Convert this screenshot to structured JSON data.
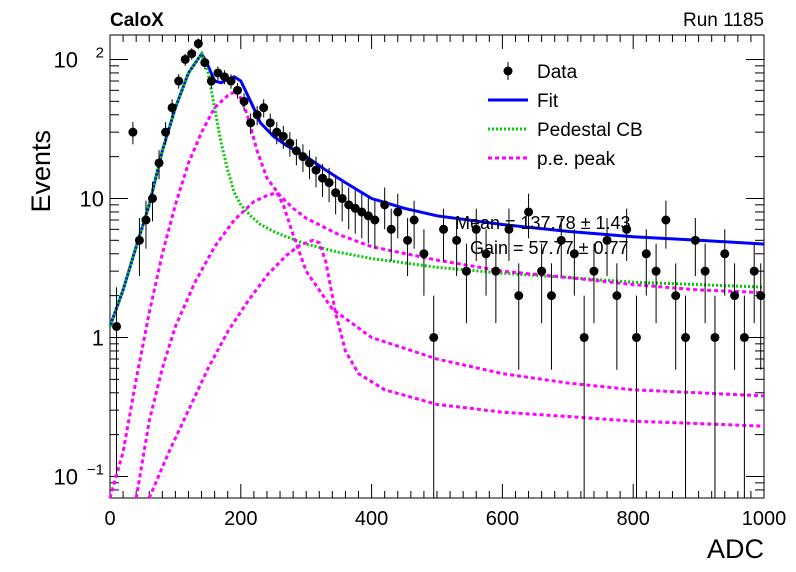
{
  "header": {
    "experiment": "CaloX",
    "run": "Run 1185"
  },
  "chart_data": {
    "type": "scatter",
    "xlabel": "ADC",
    "ylabel": "Events",
    "xlim": [
      0,
      1000
    ],
    "ylim": [
      0.07,
      150
    ],
    "yscale": "log",
    "x_ticks": [
      0,
      200,
      400,
      600,
      800,
      1000
    ],
    "y_ticks": [
      {
        "value": 100,
        "base": "10",
        "exp": "2"
      },
      {
        "value": 10,
        "base": "10",
        "exp": ""
      },
      {
        "value": 1,
        "base": "1",
        "exp": ""
      },
      {
        "value": 0.1,
        "base": "10",
        "exp": "−1"
      }
    ],
    "legend": {
      "placement": "top-right",
      "entries": [
        {
          "label": "Data",
          "kind": "marker",
          "color": "#000000"
        },
        {
          "label": "Fit",
          "kind": "line",
          "color": "#0000ff"
        },
        {
          "label": "Pedestal CB",
          "kind": "dotted",
          "color": "#00cc00"
        },
        {
          "label": "p.e. peak",
          "kind": "dashed",
          "color": "#ff00ff"
        }
      ]
    },
    "annotations": [
      "Mean = 137.78 ± 1.43",
      "Gain = 57.77 ± 0.77"
    ],
    "series": [
      {
        "name": "Data",
        "style": "points",
        "color": "#000000",
        "x": [
          10,
          35,
          45,
          55,
          65,
          75,
          85,
          95,
          105,
          115,
          125,
          135,
          145,
          155,
          165,
          175,
          185,
          195,
          205,
          215,
          225,
          235,
          245,
          255,
          265,
          275,
          285,
          295,
          305,
          315,
          325,
          335,
          345,
          355,
          365,
          375,
          385,
          395,
          405,
          420,
          430,
          440,
          455,
          465,
          480,
          495,
          510,
          530,
          545,
          560,
          575,
          590,
          610,
          625,
          640,
          660,
          675,
          690,
          710,
          725,
          740,
          760,
          775,
          790,
          805,
          820,
          835,
          850,
          865,
          880,
          895,
          910,
          925,
          940,
          955,
          970,
          985,
          995
        ],
        "y": [
          1.2,
          30,
          5,
          7,
          10,
          18,
          30,
          45,
          70,
          100,
          110,
          130,
          95,
          70,
          80,
          75,
          70,
          60,
          50,
          35,
          40,
          45,
          35,
          30,
          28,
          25,
          22,
          20,
          18,
          16,
          14,
          13,
          11,
          10,
          9,
          8.5,
          8,
          7.5,
          7,
          9,
          6,
          8,
          5,
          7,
          4,
          1,
          6,
          5,
          3,
          6,
          4,
          3,
          6,
          2,
          8,
          3,
          2,
          5,
          4,
          1,
          3,
          5,
          2,
          6,
          1,
          4,
          3,
          7,
          2,
          1,
          5,
          3,
          1,
          4,
          2,
          1,
          3,
          2
        ]
      },
      {
        "name": "Fit",
        "style": "solid",
        "color": "#0000ff",
        "x": [
          0,
          20,
          40,
          60,
          80,
          100,
          120,
          140,
          150,
          160,
          170,
          180,
          190,
          200,
          215,
          230,
          250,
          270,
          300,
          330,
          360,
          400,
          450,
          500,
          600,
          700,
          800,
          900,
          1000
        ],
        "y": [
          1.2,
          2.2,
          4.5,
          9,
          22,
          45,
          80,
          110,
          90,
          70,
          68,
          72,
          75,
          70,
          50,
          35,
          28,
          24,
          20,
          16,
          13,
          10,
          8.5,
          7.5,
          6.5,
          5.8,
          5.3,
          5.0,
          4.7
        ]
      },
      {
        "name": "Pedestal CB",
        "style": "dotted",
        "color": "#00cc00",
        "x": [
          0,
          20,
          40,
          60,
          80,
          100,
          120,
          140,
          150,
          160,
          170,
          180,
          190,
          200,
          215,
          230,
          250,
          270,
          300,
          350,
          400,
          500,
          600,
          700,
          800,
          900,
          1000
        ],
        "y": [
          1.2,
          2.2,
          4.5,
          9,
          22,
          45,
          80,
          110,
          80,
          45,
          25,
          16,
          11,
          9,
          7.5,
          6.5,
          5.8,
          5.3,
          4.7,
          4.1,
          3.7,
          3.2,
          2.9,
          2.7,
          2.5,
          2.4,
          2.3
        ]
      },
      {
        "name": "p.e. peak",
        "style": "dashed",
        "color": "#ff00ff",
        "x": [
          0,
          20,
          40,
          60,
          80,
          100,
          120,
          140,
          160,
          180,
          195,
          210,
          225,
          240,
          260,
          280,
          300,
          350,
          400,
          500,
          600,
          700,
          800,
          900,
          1000
        ],
        "y": [
          0.07,
          0.15,
          0.5,
          1.5,
          4,
          9,
          18,
          30,
          45,
          55,
          60,
          40,
          22,
          14,
          10.5,
          8.5,
          7.2,
          5.5,
          4.5,
          3.6,
          3.0,
          2.7,
          2.4,
          2.2,
          2.1
        ]
      },
      {
        "name": "p.e. peak",
        "style": "dashed",
        "color": "#ff00ff",
        "x": [
          40,
          60,
          80,
          100,
          130,
          160,
          190,
          220,
          240,
          255,
          265,
          280,
          300,
          340,
          400,
          500,
          600,
          700,
          800,
          900,
          1000
        ],
        "y": [
          0.07,
          0.25,
          0.6,
          1.2,
          2.5,
          4.5,
          7,
          9.5,
          10.5,
          11,
          9,
          5.5,
          3,
          1.6,
          1.0,
          0.7,
          0.55,
          0.47,
          0.42,
          0.4,
          0.38
        ]
      },
      {
        "name": "p.e. peak",
        "style": "dashed",
        "color": "#ff00ff",
        "x": [
          60,
          90,
          120,
          150,
          180,
          210,
          240,
          270,
          290,
          310,
          320,
          330,
          345,
          360,
          380,
          420,
          500,
          600,
          700,
          800,
          900,
          1000
        ],
        "y": [
          0.07,
          0.15,
          0.3,
          0.6,
          1.1,
          1.8,
          2.8,
          3.9,
          4.6,
          5.0,
          4.8,
          3.5,
          1.5,
          0.8,
          0.55,
          0.42,
          0.33,
          0.29,
          0.27,
          0.25,
          0.24,
          0.23
        ]
      }
    ]
  }
}
